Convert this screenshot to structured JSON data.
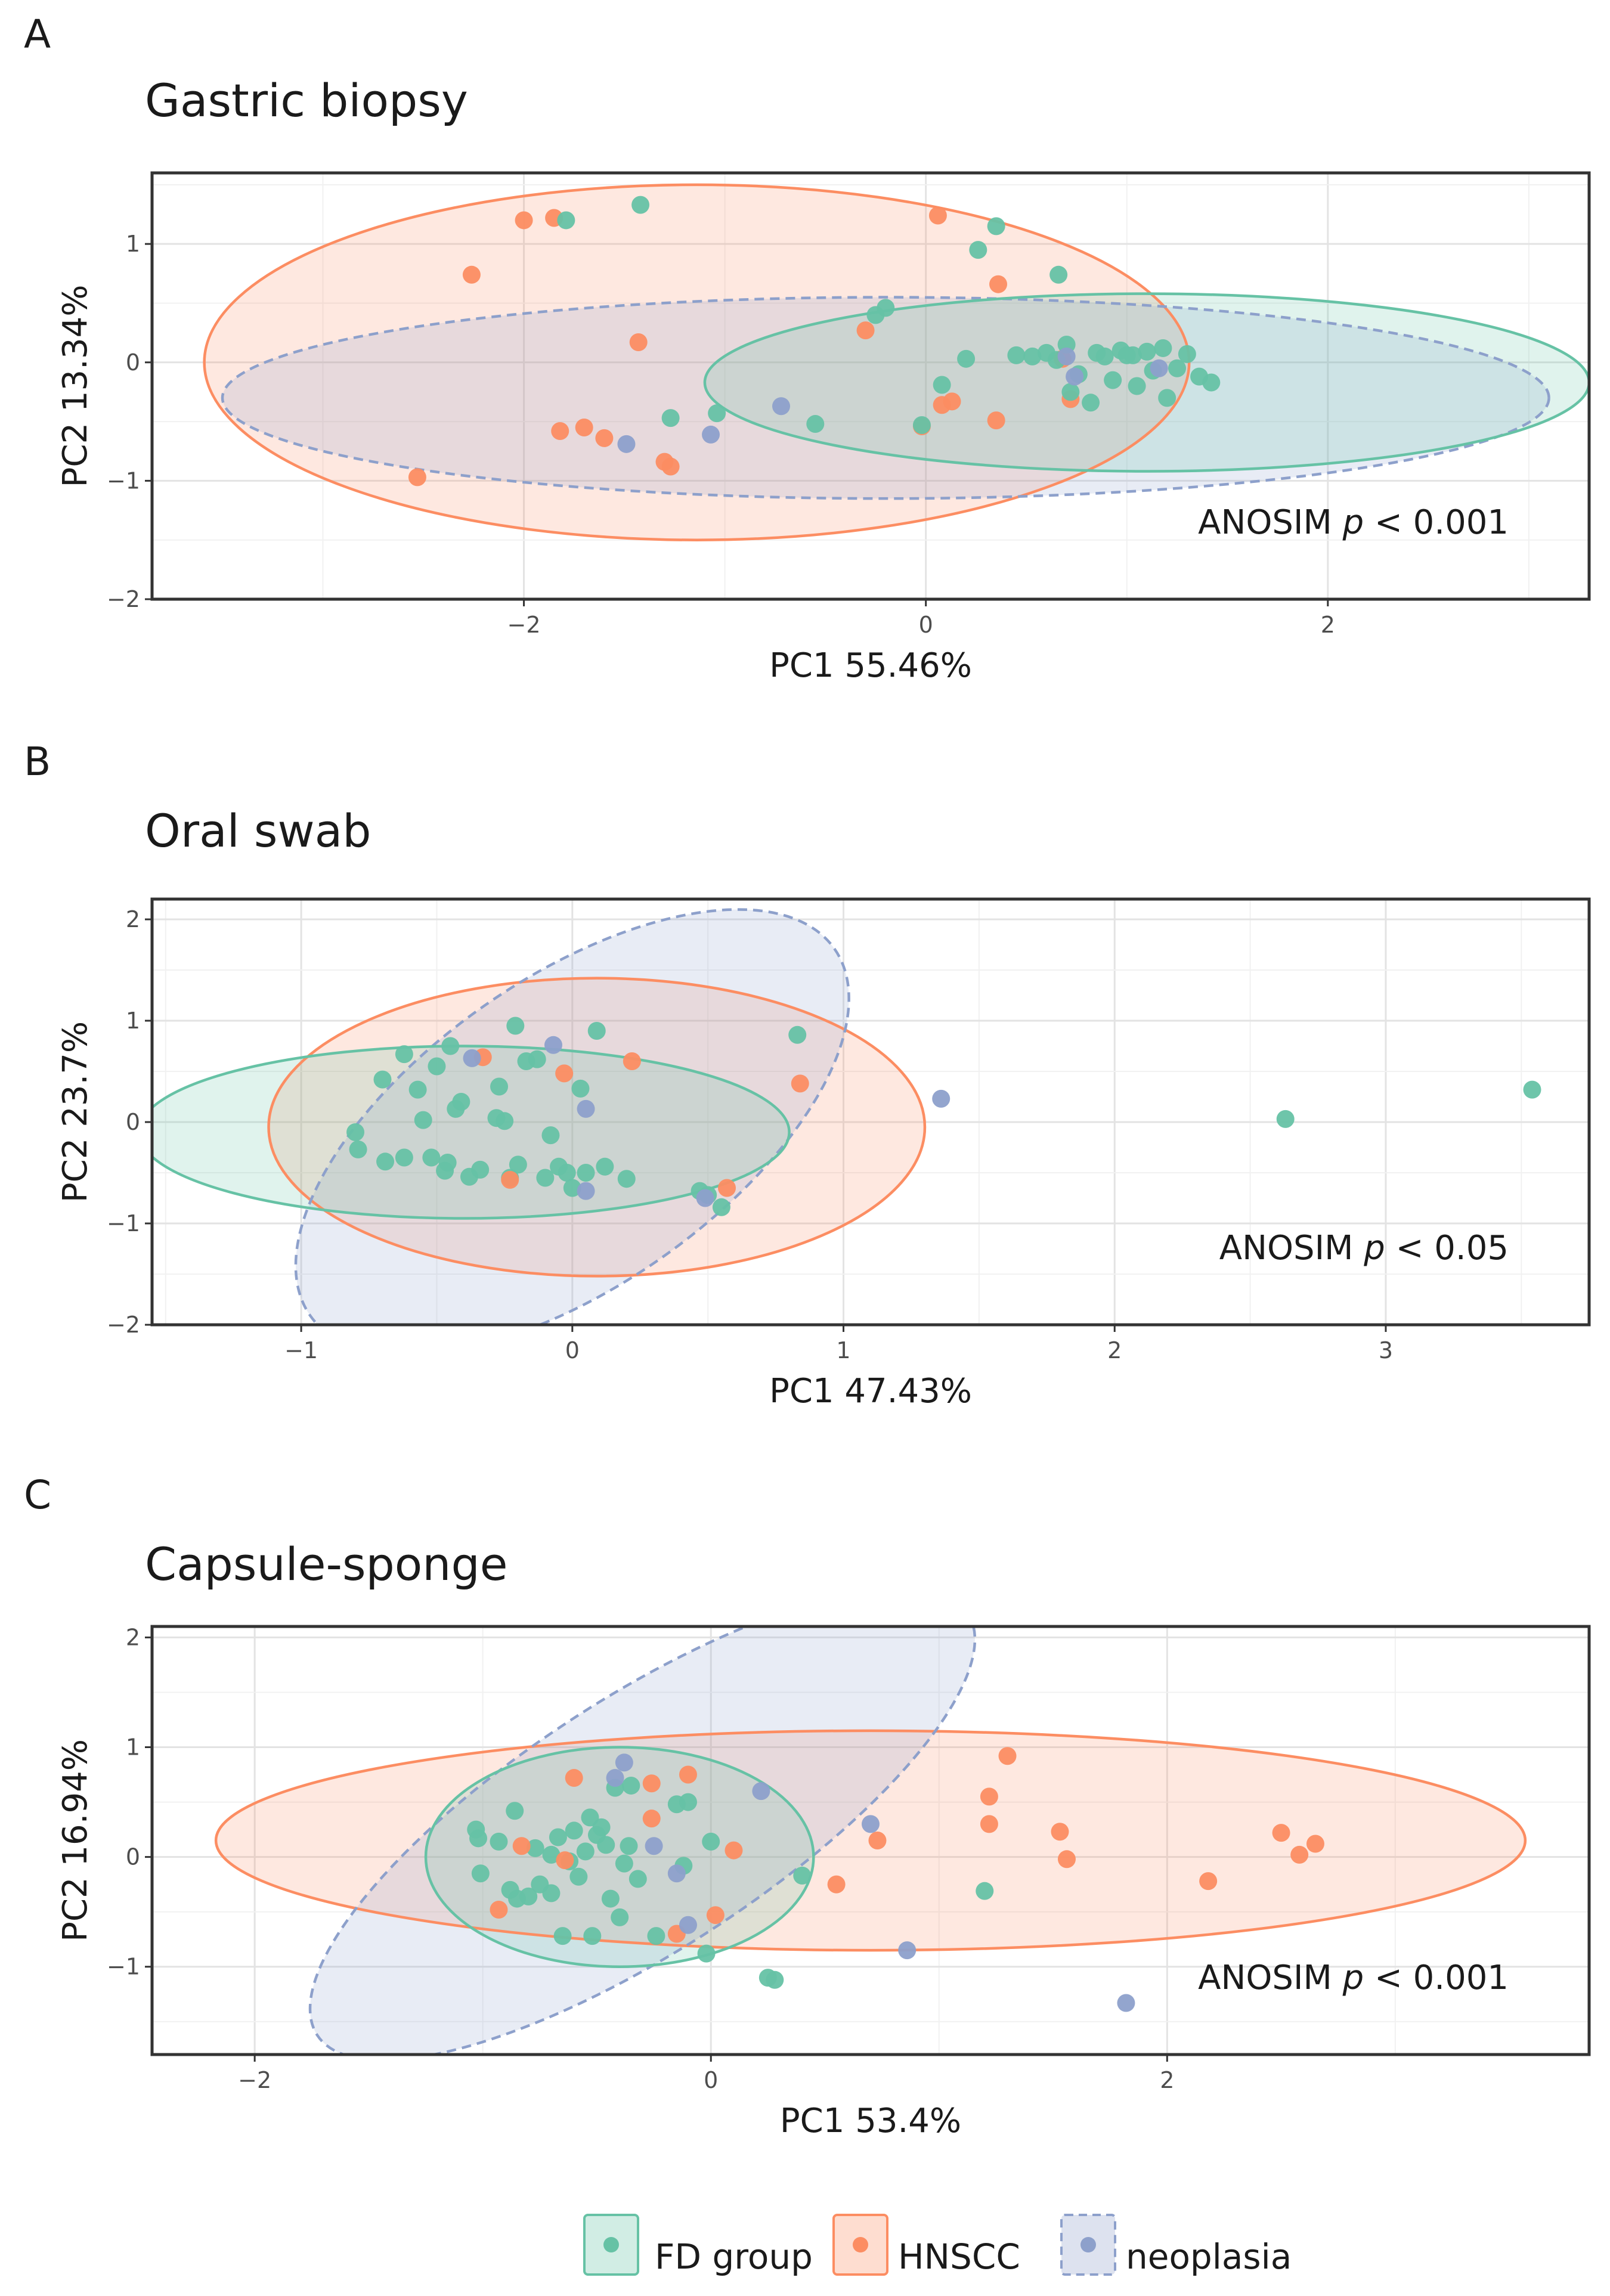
{
  "legend": {
    "items": [
      {
        "key": "FD",
        "label": "FD group",
        "color": "#66c2a5",
        "dashed": false
      },
      {
        "key": "HNSCC",
        "label": "HNSCC",
        "color": "#fc8d62",
        "dashed": false
      },
      {
        "key": "neo",
        "label": "neoplasia",
        "color": "#8da0cb",
        "dashed": true
      }
    ]
  },
  "chart_data": [
    {
      "panel": "A",
      "type": "scatter",
      "title": "Gastric biopsy",
      "xlabel": "PC1 55.46%",
      "ylabel": "PC2 13.34%",
      "xlim": [
        -3.85,
        3.3
      ],
      "ylim": [
        -2.0,
        1.6
      ],
      "xticks": [
        -2,
        0,
        2
      ],
      "yticks": [
        -2,
        -1,
        0,
        1
      ],
      "annotation": {
        "prefix": "ANOSIM ",
        "p": "p",
        "suffix": " < 0.001"
      },
      "ellipses": [
        {
          "group": "HNSCC",
          "cx": -1.14,
          "cy": 0.0,
          "rx": 2.45,
          "ry": 1.5,
          "angle": 0
        },
        {
          "group": "neo",
          "cx": -0.2,
          "cy": -0.3,
          "rx": 3.3,
          "ry": 0.85,
          "angle": 0
        },
        {
          "group": "FD",
          "cx": 1.1,
          "cy": -0.17,
          "rx": 2.2,
          "ry": 0.75,
          "angle": 0
        }
      ],
      "series": [
        {
          "group": "HNSCC",
          "points": [
            [
              -2.53,
              -0.97
            ],
            [
              -2.26,
              0.74
            ],
            [
              -2.0,
              1.2
            ],
            [
              -1.85,
              1.22
            ],
            [
              -1.82,
              -0.58
            ],
            [
              -1.7,
              -0.55
            ],
            [
              -1.6,
              -0.64
            ],
            [
              -1.43,
              0.17
            ],
            [
              -1.3,
              -0.84
            ],
            [
              -1.27,
              -0.88
            ],
            [
              -0.3,
              0.27
            ],
            [
              0.06,
              1.24
            ],
            [
              0.08,
              -0.36
            ],
            [
              0.13,
              -0.33
            ],
            [
              0.35,
              -0.49
            ],
            [
              0.36,
              0.66
            ],
            [
              0.72,
              -0.31
            ],
            [
              -0.02,
              -0.54
            ],
            [
              0.68,
              0.03
            ]
          ]
        },
        {
          "group": "FD",
          "points": [
            [
              -1.79,
              1.2
            ],
            [
              -1.42,
              1.33
            ],
            [
              -1.27,
              -0.47
            ],
            [
              -1.04,
              -0.43
            ],
            [
              -0.55,
              -0.52
            ],
            [
              -0.25,
              0.4
            ],
            [
              -0.2,
              0.46
            ],
            [
              -0.02,
              -0.53
            ],
            [
              0.08,
              -0.19
            ],
            [
              0.26,
              0.95
            ],
            [
              0.35,
              1.15
            ],
            [
              0.45,
              0.06
            ],
            [
              0.6,
              0.08
            ],
            [
              0.66,
              0.74
            ],
            [
              0.7,
              0.15
            ],
            [
              0.72,
              -0.25
            ],
            [
              0.76,
              -0.1
            ],
            [
              0.85,
              0.08
            ],
            [
              0.89,
              0.05
            ],
            [
              0.93,
              -0.15
            ],
            [
              0.97,
              0.1
            ],
            [
              1.0,
              0.06
            ],
            [
              1.05,
              -0.2
            ],
            [
              1.1,
              0.09
            ],
            [
              1.13,
              -0.07
            ],
            [
              1.18,
              0.12
            ],
            [
              1.25,
              -0.05
            ],
            [
              1.3,
              0.07
            ],
            [
              1.36,
              -0.12
            ],
            [
              1.42,
              -0.17
            ],
            [
              0.65,
              0.02
            ],
            [
              0.53,
              0.05
            ],
            [
              0.82,
              -0.34
            ],
            [
              1.2,
              -0.3
            ],
            [
              1.03,
              0.06
            ],
            [
              0.2,
              0.03
            ]
          ]
        },
        {
          "group": "neo",
          "points": [
            [
              -1.49,
              -0.69
            ],
            [
              -1.07,
              -0.61
            ],
            [
              -0.72,
              -0.37
            ],
            [
              0.7,
              0.05
            ],
            [
              0.74,
              -0.12
            ],
            [
              1.16,
              -0.05
            ]
          ]
        }
      ]
    },
    {
      "panel": "B",
      "type": "scatter",
      "title": "Oral swab",
      "xlabel": "PC1 47.43%",
      "ylabel": "PC2 23.7%",
      "xlim": [
        -1.55,
        3.75
      ],
      "ylim": [
        -2.0,
        2.2
      ],
      "xticks": [
        -1,
        0,
        1,
        2,
        3
      ],
      "yticks": [
        -2,
        -1,
        0,
        1,
        2
      ],
      "annotation": {
        "prefix": "ANOSIM ",
        "p": "p",
        "suffix": " < 0.05"
      },
      "ellipses": [
        {
          "group": "HNSCC",
          "cx": 0.09,
          "cy": -0.05,
          "rx": 1.21,
          "ry": 1.47,
          "angle": 0
        },
        {
          "group": "neo",
          "cx": 0.0,
          "cy": -0.1,
          "rx": 1.18,
          "ry": 1.52,
          "angle": -35
        },
        {
          "group": "FD",
          "cx": -0.4,
          "cy": -0.1,
          "rx": 1.2,
          "ry": 0.85,
          "angle": 0
        }
      ],
      "series": [
        {
          "group": "FD",
          "points": [
            [
              -0.8,
              -0.1
            ],
            [
              -0.79,
              -0.27
            ],
            [
              -0.7,
              0.42
            ],
            [
              -0.69,
              -0.39
            ],
            [
              -0.62,
              0.67
            ],
            [
              -0.62,
              -0.35
            ],
            [
              -0.57,
              0.32
            ],
            [
              -0.55,
              0.02
            ],
            [
              -0.52,
              -0.35
            ],
            [
              -0.5,
              0.55
            ],
            [
              -0.47,
              -0.48
            ],
            [
              -0.46,
              -0.4
            ],
            [
              -0.45,
              0.75
            ],
            [
              -0.43,
              0.13
            ],
            [
              -0.41,
              0.2
            ],
            [
              -0.38,
              -0.54
            ],
            [
              -0.34,
              -0.47
            ],
            [
              -0.28,
              0.04
            ],
            [
              -0.27,
              0.35
            ],
            [
              -0.25,
              0.01
            ],
            [
              -0.23,
              -0.55
            ],
            [
              -0.21,
              0.95
            ],
            [
              -0.2,
              -0.42
            ],
            [
              -0.17,
              0.6
            ],
            [
              -0.13,
              0.62
            ],
            [
              -0.1,
              -0.55
            ],
            [
              -0.08,
              -0.13
            ],
            [
              -0.05,
              -0.44
            ],
            [
              -0.02,
              -0.5
            ],
            [
              0.0,
              -0.65
            ],
            [
              0.03,
              0.33
            ],
            [
              0.05,
              -0.5
            ],
            [
              0.09,
              0.9
            ],
            [
              0.12,
              -0.44
            ],
            [
              0.2,
              -0.56
            ],
            [
              0.47,
              -0.68
            ],
            [
              0.5,
              -0.72
            ],
            [
              0.55,
              -0.84
            ],
            [
              0.83,
              0.86
            ],
            [
              2.63,
              0.03
            ],
            [
              3.54,
              0.32
            ]
          ]
        },
        {
          "group": "HNSCC",
          "points": [
            [
              -0.33,
              0.64
            ],
            [
              -0.23,
              -0.57
            ],
            [
              -0.03,
              0.48
            ],
            [
              0.22,
              0.6
            ],
            [
              0.57,
              -0.65
            ],
            [
              0.84,
              0.38
            ]
          ]
        },
        {
          "group": "neo",
          "points": [
            [
              -0.37,
              0.63
            ],
            [
              -0.07,
              0.76
            ],
            [
              0.05,
              0.13
            ],
            [
              0.05,
              -0.68
            ],
            [
              0.49,
              -0.75
            ],
            [
              1.36,
              0.23
            ]
          ]
        }
      ]
    },
    {
      "panel": "C",
      "type": "scatter",
      "title": "Capsule-sponge",
      "xlabel": "PC1 53.4%",
      "ylabel": "PC2 16.94%",
      "xlim": [
        -2.45,
        3.85
      ],
      "ylim": [
        -1.8,
        2.1
      ],
      "xticks": [
        -2,
        0,
        2
      ],
      "yticks": [
        -1,
        0,
        1,
        2
      ],
      "annotation": {
        "prefix": "ANOSIM ",
        "p": "p",
        "suffix": " < 0.001"
      },
      "ellipses": [
        {
          "group": "HNSCC",
          "cx": 0.7,
          "cy": 0.15,
          "rx": 2.87,
          "ry": 1.0,
          "angle": 0
        },
        {
          "group": "neo",
          "cx": -0.3,
          "cy": 0.3,
          "rx": 1.7,
          "ry": 1.15,
          "angle": -33
        },
        {
          "group": "FD",
          "cx": -0.4,
          "cy": 0.0,
          "rx": 0.85,
          "ry": 1.0,
          "angle": 0
        }
      ],
      "series": [
        {
          "group": "FD",
          "points": [
            [
              -1.03,
              0.25
            ],
            [
              -1.02,
              0.17
            ],
            [
              -1.01,
              -0.15
            ],
            [
              -0.93,
              0.14
            ],
            [
              -0.86,
              0.42
            ],
            [
              -0.85,
              -0.38
            ],
            [
              -0.8,
              -0.36
            ],
            [
              -0.77,
              0.08
            ],
            [
              -0.75,
              -0.25
            ],
            [
              -0.7,
              -0.33
            ],
            [
              -0.67,
              0.18
            ],
            [
              -0.65,
              -0.72
            ],
            [
              -0.62,
              -0.04
            ],
            [
              -0.6,
              0.24
            ],
            [
              -0.58,
              -0.18
            ],
            [
              -0.55,
              0.05
            ],
            [
              -0.53,
              0.36
            ],
            [
              -0.52,
              -0.72
            ],
            [
              -0.5,
              0.2
            ],
            [
              -0.48,
              0.27
            ],
            [
              -0.46,
              0.11
            ],
            [
              -0.44,
              -0.38
            ],
            [
              -0.42,
              0.63
            ],
            [
              -0.4,
              -0.55
            ],
            [
              -0.38,
              -0.06
            ],
            [
              -0.36,
              0.1
            ],
            [
              -0.35,
              0.65
            ],
            [
              -0.32,
              -0.2
            ],
            [
              -0.24,
              -0.72
            ],
            [
              -0.15,
              0.48
            ],
            [
              -0.12,
              -0.08
            ],
            [
              -0.1,
              0.5
            ],
            [
              -0.02,
              -0.88
            ],
            [
              0.0,
              0.14
            ],
            [
              0.25,
              -1.1
            ],
            [
              0.28,
              -1.12
            ],
            [
              0.4,
              -0.17
            ],
            [
              1.2,
              -0.31
            ],
            [
              -0.88,
              -0.3
            ],
            [
              -0.7,
              0.02
            ]
          ]
        },
        {
          "group": "HNSCC",
          "points": [
            [
              -0.93,
              -0.48
            ],
            [
              -0.83,
              0.1
            ],
            [
              -0.6,
              0.72
            ],
            [
              -0.64,
              -0.03
            ],
            [
              -0.26,
              0.67
            ],
            [
              -0.15,
              -0.7
            ],
            [
              -0.26,
              0.35
            ],
            [
              -0.1,
              0.75
            ],
            [
              0.02,
              -0.53
            ],
            [
              0.1,
              0.06
            ],
            [
              0.55,
              -0.25
            ],
            [
              0.73,
              0.15
            ],
            [
              1.22,
              0.55
            ],
            [
              1.22,
              0.3
            ],
            [
              1.3,
              0.92
            ],
            [
              1.53,
              0.23
            ],
            [
              1.56,
              -0.02
            ],
            [
              2.18,
              -0.22
            ],
            [
              2.5,
              0.22
            ],
            [
              2.58,
              0.02
            ],
            [
              2.65,
              0.12
            ]
          ]
        },
        {
          "group": "neo",
          "points": [
            [
              -0.42,
              0.72
            ],
            [
              -0.38,
              0.86
            ],
            [
              -0.25,
              0.1
            ],
            [
              -0.15,
              -0.15
            ],
            [
              -0.1,
              -0.62
            ],
            [
              0.22,
              0.6
            ],
            [
              0.7,
              0.3
            ],
            [
              0.86,
              -0.85
            ],
            [
              1.82,
              -1.33
            ]
          ]
        }
      ]
    }
  ]
}
